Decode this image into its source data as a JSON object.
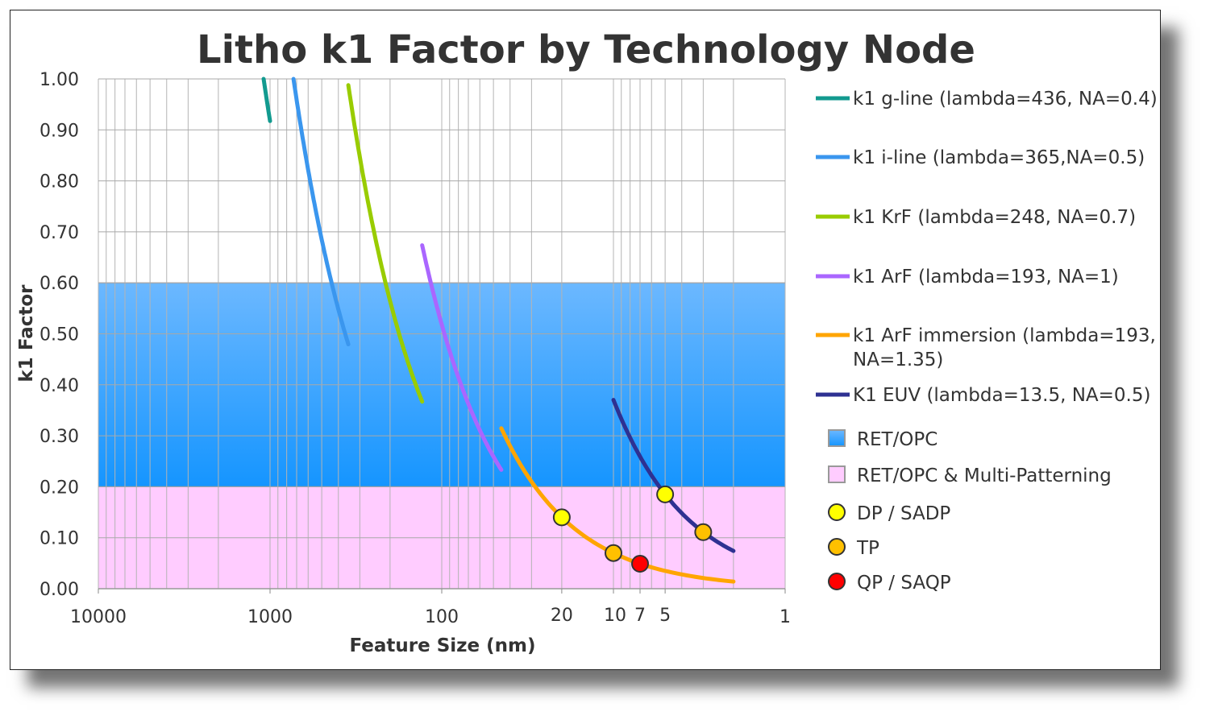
{
  "chart_data": {
    "type": "line",
    "title": "Litho k1 Factor by Technology Node",
    "xlabel": "Feature Size (nm)",
    "ylabel": "k1 Factor",
    "x_scale": "log",
    "x_reversed": true,
    "xlim": [
      10000,
      1
    ],
    "ylim": [
      0,
      1
    ],
    "x_ticks": [
      "10000",
      "1000",
      "100",
      "20",
      "10",
      "7",
      "5",
      "1"
    ],
    "x_tick_values": [
      10000,
      1000,
      100,
      20,
      10,
      7,
      5,
      1
    ],
    "y_ticks": [
      "0.00",
      "0.10",
      "0.20",
      "0.30",
      "0.40",
      "0.50",
      "0.60",
      "0.70",
      "0.80",
      "0.90",
      "1.00"
    ],
    "grid": true,
    "legend_position": "right",
    "bands": [
      {
        "name": "RET/OPC",
        "y": [
          0.2,
          0.6
        ],
        "color": "#1a9bff"
      },
      {
        "name": "RET/OPC & Multi-Patterning",
        "y": [
          0,
          0.2
        ],
        "color": "#ffccff"
      }
    ],
    "series": [
      {
        "name": "k1 g-line (lambda=436, NA=0.4)",
        "wavelength": 436,
        "na": 0.4,
        "x_range": [
          1090,
          1000
        ],
        "color": "#129a8f"
      },
      {
        "name": "k1 i-line (lambda=365,NA=0.5)",
        "wavelength": 365,
        "na": 0.5,
        "x_range": [
          730,
          350
        ],
        "color": "#3a96ee"
      },
      {
        "name": "k1 KrF (lambda=248, NA=0.7)",
        "wavelength": 248,
        "na": 0.7,
        "x_range": [
          350,
          130
        ],
        "color": "#99cc00"
      },
      {
        "name": "k1 ArF (lambda=193, NA=1)",
        "wavelength": 193,
        "na": 1,
        "x_range": [
          130,
          45
        ],
        "color": "#aa66ff"
      },
      {
        "name": "k1 ArF immersion (lambda=193, NA=1.35)",
        "name_lines": [
          "k1 ArF immersion (lambda=193,",
          "NA=1.35)"
        ],
        "wavelength": 193,
        "na": 1.35,
        "x_range": [
          45,
          2
        ],
        "color": "#ffa500"
      },
      {
        "name": "K1 EUV (lambda=13.5, NA=0.5)",
        "wavelength": 13.5,
        "na": 0.5,
        "x_range": [
          10,
          2
        ],
        "color": "#2e3192"
      }
    ],
    "points": [
      {
        "name": "DP / SADP",
        "color": "#ffff00",
        "data": [
          {
            "x": 20,
            "y": 0.14
          },
          {
            "x": 5,
            "y": 0.185
          }
        ]
      },
      {
        "name": "TP",
        "color": "#ffc000",
        "data": [
          {
            "x": 10,
            "y": 0.07
          },
          {
            "x": 3,
            "y": 0.111
          }
        ]
      },
      {
        "name": "QP / SAQP",
        "color": "#ff0000",
        "data": [
          {
            "x": 7,
            "y": 0.049
          }
        ]
      }
    ]
  }
}
